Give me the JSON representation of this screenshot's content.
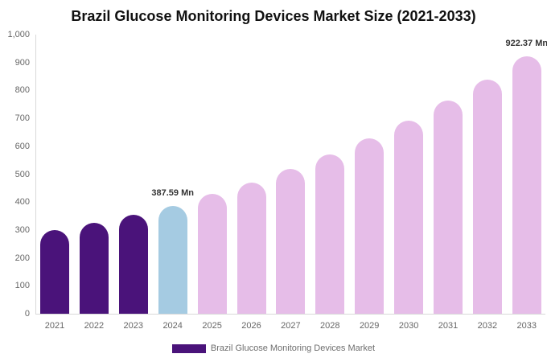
{
  "title": "Brazil Glucose Monitoring Devices Market Size (2021-2033)",
  "legend": {
    "label": "Brazil Glucose Monitoring Devices Market",
    "swatch_color": "#4A137A"
  },
  "colors": {
    "historical_bar": "#4A137A",
    "current_bar": "#A5CBE2",
    "forecast_bar": "#E6BDE8",
    "axis_line": "#D9D9D9",
    "tick_text": "#666666",
    "annotation_text": "#333333",
    "background": "#FFFFFF"
  },
  "chart_data": {
    "type": "bar",
    "title": "Brazil Glucose Monitoring Devices Market Size (2021-2033)",
    "unit": "Mn",
    "categories": [
      "2021",
      "2022",
      "2023",
      "2024",
      "2025",
      "2026",
      "2027",
      "2028",
      "2029",
      "2030",
      "2031",
      "2032",
      "2033"
    ],
    "values": [
      299,
      325,
      355,
      387.59,
      428,
      471,
      518,
      570,
      627,
      693,
      763,
      840,
      922.37
    ],
    "bar_roles": [
      "historical",
      "historical",
      "historical",
      "current",
      "forecast",
      "forecast",
      "forecast",
      "forecast",
      "forecast",
      "forecast",
      "forecast",
      "forecast",
      "forecast"
    ],
    "annotations": [
      {
        "category": "2024",
        "label": "387.59 Mn"
      },
      {
        "category": "2033",
        "label": "922.37 Mn"
      }
    ],
    "xlabel": "",
    "ylabel": "",
    "ylim": [
      0,
      1000
    ],
    "yticks": [
      {
        "value": 1000,
        "label": "1,000"
      },
      {
        "value": 900,
        "label": "900"
      },
      {
        "value": 800,
        "label": "800"
      },
      {
        "value": 700,
        "label": "700"
      },
      {
        "value": 600,
        "label": "600"
      },
      {
        "value": 500,
        "label": "500"
      },
      {
        "value": 400,
        "label": "400"
      },
      {
        "value": 300,
        "label": "300"
      },
      {
        "value": 200,
        "label": "200"
      },
      {
        "value": 100,
        "label": "100"
      },
      {
        "value": 0,
        "label": "0"
      }
    ],
    "grid": false,
    "legend_position": "bottom"
  }
}
